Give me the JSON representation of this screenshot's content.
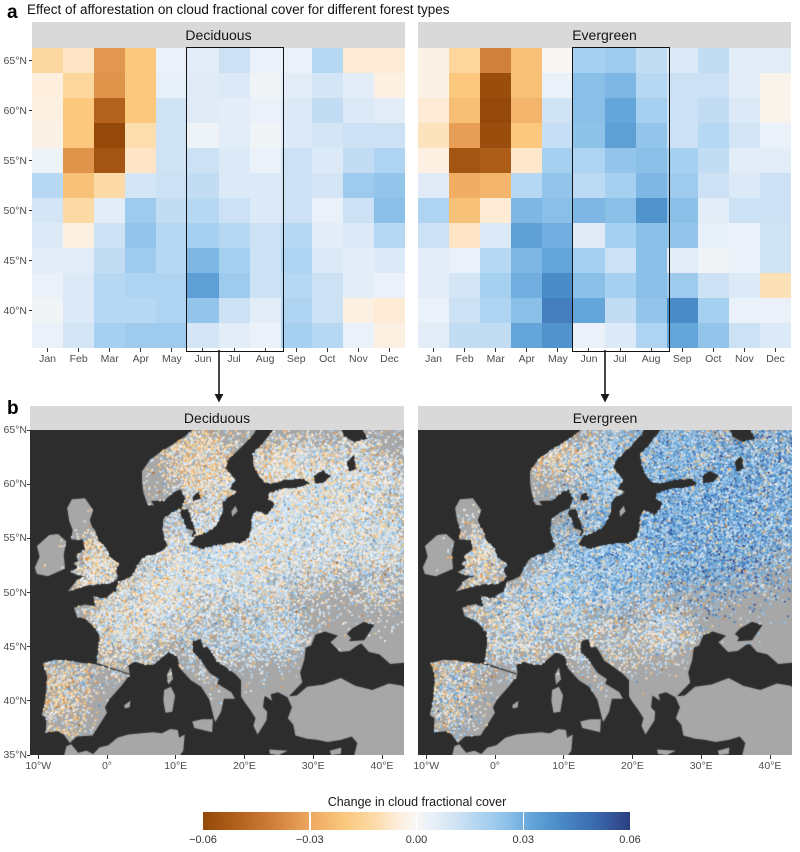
{
  "figure_title": "Effect of afforestation on cloud fractional cover for different forest types",
  "panels": {
    "a": {
      "label": "a",
      "facets": [
        "Deciduous",
        "Evergreen"
      ],
      "months": [
        "Jan",
        "Feb",
        "Mar",
        "Apr",
        "May",
        "Jun",
        "Jul",
        "Aug",
        "Sep",
        "Oct",
        "Nov",
        "Dec"
      ],
      "lat_tick_labels": [
        "65°N",
        "60°N",
        "55°N",
        "50°N",
        "45°N",
        "40°N"
      ]
    },
    "b": {
      "label": "b",
      "facets": [
        "Deciduous",
        "Evergreen"
      ],
      "lat_tick_labels": [
        "65°N",
        "60°N",
        "55°N",
        "50°N",
        "45°N",
        "40°N",
        "35°N"
      ],
      "lon_tick_labels": [
        "10°W",
        "0°",
        "10°E",
        "20°E",
        "30°E",
        "40°E"
      ],
      "lon_tick_values": [
        -10,
        0,
        10,
        20,
        30,
        40
      ],
      "land_color": "#a7a7a7",
      "sea_color": "#2d2d2d"
    }
  },
  "colorbar": {
    "title": "Change in cloud fractional cover",
    "tick_labels": [
      "−0.06",
      "−0.03",
      "0.00",
      "0.03",
      "0.06"
    ],
    "tick_values": [
      -0.06,
      -0.03,
      0,
      0.03,
      0.06
    ],
    "range": [
      -0.06,
      0.06
    ],
    "stops": [
      [
        -0.06,
        "#94490a"
      ],
      [
        -0.05,
        "#b2621c"
      ],
      [
        -0.04,
        "#d0803a"
      ],
      [
        -0.03,
        "#eda75f"
      ],
      [
        -0.02,
        "#fbc87e"
      ],
      [
        -0.012,
        "#fcdaa6"
      ],
      [
        -0.005,
        "#fdeedd"
      ],
      [
        0.0,
        "#f8f7f5"
      ],
      [
        0.004,
        "#eaf1f9"
      ],
      [
        0.008,
        "#dce9f6"
      ],
      [
        0.012,
        "#cce1f4"
      ],
      [
        0.016,
        "#b7d8f2"
      ],
      [
        0.02,
        "#a6d0f0"
      ],
      [
        0.026,
        "#8abfe8"
      ],
      [
        0.032,
        "#65a6da"
      ],
      [
        0.04,
        "#4a8cc8"
      ],
      [
        0.05,
        "#3a6ab0"
      ],
      [
        0.06,
        "#2c3f80"
      ]
    ]
  },
  "chart_data": [
    {
      "type": "heatmap",
      "facet": "Deciduous",
      "x_categories": [
        "Jan",
        "Feb",
        "Mar",
        "Apr",
        "May",
        "Jun",
        "Jul",
        "Aug",
        "Sep",
        "Oct",
        "Nov",
        "Dec"
      ],
      "y_lat_centers": [
        65,
        62.5,
        60,
        57.5,
        55,
        52.5,
        50,
        47.5,
        45,
        42.5,
        40,
        37.5
      ],
      "value_name": "change in cloud fractional cover",
      "highlight_months": [
        "Jun",
        "Jul",
        "Aug"
      ],
      "values": [
        [
          -0.013,
          -0.008,
          -0.034,
          -0.02,
          0.004,
          0.006,
          0.012,
          0.004,
          0.004,
          0.016,
          -0.006,
          -0.006
        ],
        [
          -0.005,
          -0.014,
          -0.035,
          -0.02,
          0.005,
          0.007,
          0.008,
          0.002,
          0.006,
          0.01,
          0.006,
          -0.004
        ],
        [
          -0.004,
          -0.02,
          -0.05,
          -0.02,
          0.011,
          0.007,
          0.006,
          0.004,
          0.008,
          0.014,
          0.008,
          0.006
        ],
        [
          -0.003,
          -0.02,
          -0.062,
          -0.011,
          0.011,
          0.003,
          0.006,
          0.002,
          0.008,
          0.01,
          0.012,
          0.012
        ],
        [
          0.003,
          -0.035,
          -0.055,
          -0.008,
          0.011,
          0.012,
          0.008,
          0.004,
          0.012,
          0.008,
          0.014,
          0.018
        ],
        [
          0.016,
          -0.022,
          -0.012,
          0.01,
          0.012,
          0.014,
          0.008,
          0.008,
          0.012,
          0.01,
          0.022,
          0.024
        ],
        [
          0.01,
          -0.012,
          0.006,
          0.022,
          0.014,
          0.016,
          0.012,
          0.008,
          0.012,
          0.004,
          0.012,
          0.026
        ],
        [
          0.008,
          -0.004,
          0.012,
          0.024,
          0.016,
          0.02,
          0.016,
          0.012,
          0.016,
          0.006,
          0.008,
          0.016
        ],
        [
          0.006,
          0.006,
          0.014,
          0.022,
          0.016,
          0.028,
          0.02,
          0.012,
          0.018,
          0.008,
          0.006,
          0.008
        ],
        [
          0.004,
          0.008,
          0.016,
          0.018,
          0.018,
          0.034,
          0.022,
          0.012,
          0.016,
          0.012,
          0.006,
          0.004
        ],
        [
          0.002,
          0.008,
          0.016,
          0.016,
          0.018,
          0.024,
          0.012,
          0.006,
          0.018,
          0.012,
          -0.004,
          -0.006
        ],
        [
          0.004,
          0.01,
          0.02,
          0.022,
          0.022,
          0.01,
          0.006,
          0.004,
          0.02,
          0.016,
          0.004,
          -0.004
        ]
      ]
    },
    {
      "type": "heatmap",
      "facet": "Evergreen",
      "x_categories": [
        "Jan",
        "Feb",
        "Mar",
        "Apr",
        "May",
        "Jun",
        "Jul",
        "Aug",
        "Sep",
        "Oct",
        "Nov",
        "Dec"
      ],
      "y_lat_centers": [
        65,
        62.5,
        60,
        57.5,
        55,
        52.5,
        50,
        47.5,
        45,
        42.5,
        40,
        37.5
      ],
      "value_name": "change in cloud fractional cover",
      "highlight_months": [
        "Jun",
        "Jul",
        "Aug"
      ],
      "values": [
        [
          -0.003,
          -0.014,
          -0.04,
          -0.022,
          0.0,
          0.02,
          0.022,
          0.014,
          0.008,
          0.014,
          0.006,
          0.006
        ],
        [
          -0.003,
          -0.02,
          -0.058,
          -0.022,
          0.004,
          0.026,
          0.028,
          0.016,
          0.012,
          0.012,
          0.006,
          -0.002
        ],
        [
          -0.006,
          -0.023,
          -0.06,
          -0.026,
          0.011,
          0.026,
          0.032,
          0.02,
          0.012,
          0.014,
          0.008,
          -0.002
        ],
        [
          -0.009,
          -0.032,
          -0.058,
          -0.02,
          0.013,
          0.025,
          0.034,
          0.024,
          0.012,
          0.016,
          0.01,
          0.004
        ],
        [
          -0.004,
          -0.055,
          -0.052,
          -0.007,
          0.02,
          0.018,
          0.024,
          0.026,
          0.02,
          0.014,
          0.006,
          0.006
        ],
        [
          0.007,
          -0.028,
          -0.026,
          0.016,
          0.024,
          0.015,
          0.02,
          0.028,
          0.022,
          0.012,
          0.008,
          0.012
        ],
        [
          0.018,
          -0.022,
          -0.006,
          0.028,
          0.026,
          0.028,
          0.026,
          0.038,
          0.026,
          0.006,
          0.012,
          0.012
        ],
        [
          0.012,
          -0.008,
          0.008,
          0.034,
          0.03,
          0.007,
          0.02,
          0.026,
          0.024,
          0.005,
          0.004,
          0.011
        ],
        [
          0.006,
          0.004,
          0.016,
          0.028,
          0.032,
          0.02,
          0.012,
          0.026,
          0.006,
          0.002,
          0.004,
          0.011
        ],
        [
          0.006,
          0.01,
          0.02,
          0.03,
          0.04,
          0.026,
          0.02,
          0.026,
          0.022,
          0.012,
          0.008,
          -0.01
        ],
        [
          0.004,
          0.012,
          0.018,
          0.026,
          0.044,
          0.032,
          0.014,
          0.024,
          0.04,
          0.02,
          0.004,
          0.004
        ],
        [
          0.006,
          0.014,
          0.014,
          0.032,
          0.038,
          0.004,
          0.008,
          0.018,
          0.032,
          0.024,
          0.012,
          0.008
        ]
      ]
    },
    {
      "type": "map",
      "facet": "Deciduous",
      "lon_range": [
        -11.2,
        43.2
      ],
      "lat_range": [
        35,
        65
      ],
      "description": "Grid-cell changes over European forest areas for Jun–Aug: mostly weak positive (pale blue) speckles over central and eastern Europe, France and the UK, mixed with scattered negative (orange) cells; sparse mixed speckles in Iberia and Scandinavia.",
      "speckle_clusters": [
        {
          "lon": 18,
          "lat": 53.2,
          "sx": 6.5,
          "sy": 3.0,
          "n": 9000,
          "mean": 0.01,
          "sd": 0.01,
          "neg": 0.15
        },
        {
          "lon": 32,
          "lat": 56.5,
          "sx": 6.0,
          "sy": 3.2,
          "n": 7000,
          "mean": 0.009,
          "sd": 0.011,
          "neg": 0.18
        },
        {
          "lon": 25,
          "lat": 57.3,
          "sx": 3.0,
          "sy": 1.8,
          "n": 2200,
          "mean": 0.01,
          "sd": 0.01,
          "neg": 0.15
        },
        {
          "lon": 2.5,
          "lat": 47.0,
          "sx": 3.5,
          "sy": 2.3,
          "n": 2600,
          "mean": 0.008,
          "sd": 0.011,
          "neg": 0.24
        },
        {
          "lon": 8.8,
          "lat": 50.2,
          "sx": 2.6,
          "sy": 1.9,
          "n": 2000,
          "mean": 0.009,
          "sd": 0.011,
          "neg": 0.22
        },
        {
          "lon": -1.6,
          "lat": 52.8,
          "sx": 1.9,
          "sy": 1.6,
          "n": 900,
          "mean": 0.004,
          "sd": 0.011,
          "neg": 0.32
        },
        {
          "lon": -6.4,
          "lat": 41.2,
          "sx": 2.5,
          "sy": 2.6,
          "n": 1100,
          "mean": 0.004,
          "sd": 0.015,
          "neg": 0.42
        },
        {
          "lon": 15.5,
          "lat": 60.3,
          "sx": 3.5,
          "sy": 1.9,
          "n": 1600,
          "mean": 0.006,
          "sd": 0.011,
          "neg": 0.3
        },
        {
          "lon": 26,
          "lat": 61.8,
          "sx": 3.2,
          "sy": 1.6,
          "n": 1300,
          "mean": 0.006,
          "sd": 0.011,
          "neg": 0.3
        },
        {
          "lon": 16,
          "lat": 45.2,
          "sx": 4.5,
          "sy": 1.8,
          "n": 1100,
          "mean": 0.012,
          "sd": 0.009,
          "neg": 0.14
        },
        {
          "lon": 24.8,
          "lat": 46.2,
          "sx": 2.6,
          "sy": 1.4,
          "n": 900,
          "mean": 0.014,
          "sd": 0.009,
          "neg": 0.12
        },
        {
          "lon": 12.5,
          "lat": 63.3,
          "sx": 3.0,
          "sy": 1.6,
          "n": 800,
          "mean": 0.0,
          "sd": 0.013,
          "neg": 0.48
        },
        {
          "lon": 36,
          "lat": 61.0,
          "sx": 4.0,
          "sy": 2.2,
          "n": 2200,
          "mean": 0.008,
          "sd": 0.011,
          "neg": 0.22
        },
        {
          "lon": 41,
          "lat": 54.5,
          "sx": 3.2,
          "sy": 3.2,
          "n": 2000,
          "mean": 0.01,
          "sd": 0.011,
          "neg": 0.16
        }
      ]
    },
    {
      "type": "map",
      "facet": "Evergreen",
      "lon_range": [
        -11.2,
        43.2
      ],
      "lat_range": [
        35,
        65
      ],
      "description": "Grid-cell changes over European forest areas for Jun–Aug: dense medium-to-strong positive (blue) speckles across the Baltic region, Poland, Belarus, Finland, Sweden and western Russia; weaker mixed speckles over France, the UK and Iberia; rare negative (orange) cells.",
      "speckle_clusters": [
        {
          "lon": 26.5,
          "lat": 56.3,
          "sx": 6.5,
          "sy": 3.2,
          "n": 14000,
          "mean": 0.03,
          "sd": 0.014,
          "neg": 0.05
        },
        {
          "lon": 37,
          "lat": 58.5,
          "sx": 5.0,
          "sy": 3.4,
          "n": 9000,
          "mean": 0.03,
          "sd": 0.015,
          "neg": 0.06
        },
        {
          "lon": 16,
          "lat": 52.3,
          "sx": 4.5,
          "sy": 2.3,
          "n": 5000,
          "mean": 0.024,
          "sd": 0.013,
          "neg": 0.08
        },
        {
          "lon": 17,
          "lat": 61.3,
          "sx": 3.5,
          "sy": 2.2,
          "n": 3000,
          "mean": 0.02,
          "sd": 0.013,
          "neg": 0.12
        },
        {
          "lon": 27,
          "lat": 62.6,
          "sx": 3.5,
          "sy": 1.8,
          "n": 2800,
          "mean": 0.026,
          "sd": 0.013,
          "neg": 0.08
        },
        {
          "lon": 2.5,
          "lat": 46.8,
          "sx": 3.5,
          "sy": 2.3,
          "n": 2000,
          "mean": 0.012,
          "sd": 0.013,
          "neg": 0.2
        },
        {
          "lon": -2,
          "lat": 53.3,
          "sx": 2.0,
          "sy": 1.9,
          "n": 1000,
          "mean": 0.008,
          "sd": 0.013,
          "neg": 0.28
        },
        {
          "lon": -6.4,
          "lat": 41.2,
          "sx": 2.5,
          "sy": 2.6,
          "n": 1200,
          "mean": 0.014,
          "sd": 0.016,
          "neg": 0.28
        },
        {
          "lon": 15,
          "lat": 45.3,
          "sx": 4.5,
          "sy": 1.8,
          "n": 900,
          "mean": 0.01,
          "sd": 0.011,
          "neg": 0.2
        },
        {
          "lon": 25,
          "lat": 46.4,
          "sx": 2.6,
          "sy": 1.4,
          "n": 800,
          "mean": 0.012,
          "sd": 0.01,
          "neg": 0.18
        },
        {
          "lon": 8.5,
          "lat": 62.8,
          "sx": 3.0,
          "sy": 1.6,
          "n": 700,
          "mean": 0.004,
          "sd": 0.013,
          "neg": 0.42
        },
        {
          "lon": 42,
          "lat": 61.5,
          "sx": 3.0,
          "sy": 3.5,
          "n": 2600,
          "mean": 0.028,
          "sd": 0.015,
          "neg": 0.08
        },
        {
          "lon": 9,
          "lat": 49.8,
          "sx": 2.6,
          "sy": 1.9,
          "n": 1800,
          "mean": 0.018,
          "sd": 0.012,
          "neg": 0.12
        }
      ]
    }
  ]
}
